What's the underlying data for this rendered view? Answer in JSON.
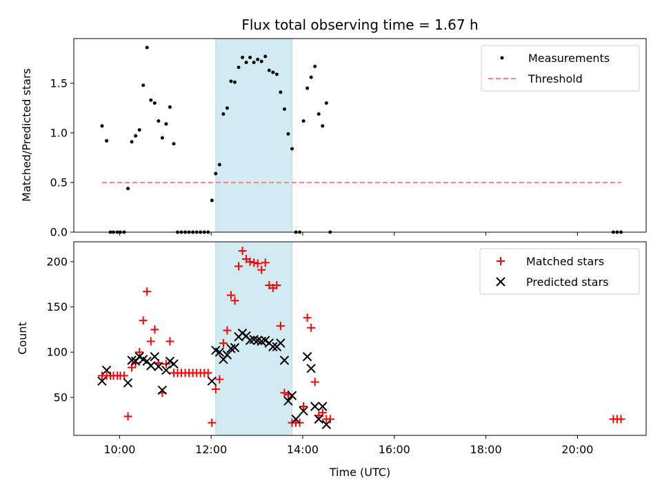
{
  "chart_data": {
    "type": "scatter",
    "title": "Flux total observing time = 1.67 h",
    "xlabel": "Time (UTC)",
    "xlim": [
      "09:00",
      "21:30"
    ],
    "x_ticks": [
      "10:00",
      "12:00",
      "14:00",
      "16:00",
      "18:00",
      "20:00"
    ],
    "highlight_span": {
      "start": "12:06",
      "end": "13:46",
      "color": "#add8e6"
    },
    "panels": [
      {
        "id": "ratio",
        "ylabel": "Matched/Predicted stars",
        "ylim": [
          0,
          1.95
        ],
        "y_ticks": [
          "0.0",
          "0.5",
          "1.0",
          "1.5"
        ],
        "legend_position": "upper right",
        "series": [
          {
            "name": "Measurements",
            "marker": "dot",
            "color": "#000000",
            "points": [
              [
                "09:37",
                1.07
              ],
              [
                "09:43",
                0.92
              ],
              [
                "09:48",
                0.0
              ],
              [
                "09:52",
                0.0
              ],
              [
                "09:57",
                0.0
              ],
              [
                "10:01",
                0.0
              ],
              [
                "10:06",
                0.0
              ],
              [
                "10:11",
                0.44
              ],
              [
                "10:16",
                0.91
              ],
              [
                "10:21",
                0.97
              ],
              [
                "10:26",
                1.03
              ],
              [
                "10:31",
                1.48
              ],
              [
                "10:36",
                1.86
              ],
              [
                "10:41",
                1.33
              ],
              [
                "10:46",
                1.3
              ],
              [
                "10:51",
                1.12
              ],
              [
                "10:56",
                0.95
              ],
              [
                "11:01",
                1.09
              ],
              [
                "11:06",
                1.26
              ],
              [
                "11:11",
                0.89
              ],
              [
                "11:16",
                0.0
              ],
              [
                "11:21",
                0.0
              ],
              [
                "11:26",
                0.0
              ],
              [
                "11:31",
                0.0
              ],
              [
                "11:36",
                0.0
              ],
              [
                "11:41",
                0.0
              ],
              [
                "11:46",
                0.0
              ],
              [
                "11:51",
                0.0
              ],
              [
                "11:56",
                0.0
              ],
              [
                "12:01",
                0.32
              ],
              [
                "12:06",
                0.59
              ],
              [
                "12:11",
                0.68
              ],
              [
                "12:16",
                1.19
              ],
              [
                "12:21",
                1.25
              ],
              [
                "12:26",
                1.52
              ],
              [
                "12:31",
                1.51
              ],
              [
                "12:36",
                1.66
              ],
              [
                "12:41",
                1.76
              ],
              [
                "12:46",
                1.71
              ],
              [
                "12:51",
                1.76
              ],
              [
                "12:56",
                1.71
              ],
              [
                "13:01",
                1.74
              ],
              [
                "13:06",
                1.72
              ],
              [
                "13:11",
                1.77
              ],
              [
                "13:16",
                1.63
              ],
              [
                "13:21",
                1.61
              ],
              [
                "13:26",
                1.59
              ],
              [
                "13:31",
                1.41
              ],
              [
                "13:36",
                1.24
              ],
              [
                "13:41",
                0.99
              ],
              [
                "13:46",
                0.84
              ],
              [
                "13:51",
                0.0
              ],
              [
                "13:56",
                0.0
              ],
              [
                "14:01",
                1.12
              ],
              [
                "14:06",
                1.45
              ],
              [
                "14:11",
                1.56
              ],
              [
                "14:16",
                1.67
              ],
              [
                "14:21",
                1.19
              ],
              [
                "14:26",
                1.07
              ],
              [
                "14:31",
                1.3
              ],
              [
                "14:36",
                0.0
              ],
              [
                "20:47",
                0.0
              ],
              [
                "20:52",
                0.0
              ],
              [
                "20:57",
                0.0
              ]
            ]
          },
          {
            "name": "Threshold",
            "line": "dashed",
            "color": "#ff7f7f",
            "points": [
              [
                "09:37",
                0.5
              ],
              [
                "20:57",
                0.5
              ]
            ]
          }
        ]
      },
      {
        "id": "counts",
        "ylabel": "Count",
        "ylim": [
          8,
          222
        ],
        "y_ticks": [
          "50",
          "100",
          "150",
          "200"
        ],
        "legend_position": "upper right",
        "series": [
          {
            "name": "Matched stars",
            "marker": "plus",
            "color": "#ff0000",
            "points": [
              [
                "09:37",
                74
              ],
              [
                "09:43",
                74
              ],
              [
                "09:48",
                74
              ],
              [
                "09:52",
                74
              ],
              [
                "09:57",
                74
              ],
              [
                "10:01",
                74
              ],
              [
                "10:06",
                74
              ],
              [
                "10:11",
                29
              ],
              [
                "10:16",
                83
              ],
              [
                "10:21",
                88
              ],
              [
                "10:26",
                100
              ],
              [
                "10:31",
                135
              ],
              [
                "10:36",
                167
              ],
              [
                "10:41",
                112
              ],
              [
                "10:46",
                125
              ],
              [
                "10:51",
                88
              ],
              [
                "10:56",
                55
              ],
              [
                "11:01",
                87
              ],
              [
                "11:06",
                112
              ],
              [
                "11:11",
                77
              ],
              [
                "11:16",
                77
              ],
              [
                "11:21",
                77
              ],
              [
                "11:26",
                77
              ],
              [
                "11:31",
                77
              ],
              [
                "11:36",
                77
              ],
              [
                "11:41",
                77
              ],
              [
                "11:46",
                77
              ],
              [
                "11:51",
                77
              ],
              [
                "11:56",
                77
              ],
              [
                "12:01",
                22
              ],
              [
                "12:06",
                59
              ],
              [
                "12:11",
                70
              ],
              [
                "12:16",
                110
              ],
              [
                "12:21",
                124
              ],
              [
                "12:26",
                163
              ],
              [
                "12:31",
                157
              ],
              [
                "12:36",
                195
              ],
              [
                "12:41",
                212
              ],
              [
                "12:46",
                203
              ],
              [
                "12:51",
                200
              ],
              [
                "12:56",
                199
              ],
              [
                "13:01",
                198
              ],
              [
                "13:06",
                191
              ],
              [
                "13:11",
                199
              ],
              [
                "13:16",
                174
              ],
              [
                "13:21",
                171
              ],
              [
                "13:26",
                174
              ],
              [
                "13:31",
                129
              ],
              [
                "13:36",
                55
              ],
              [
                "13:41",
                53
              ],
              [
                "13:46",
                22
              ],
              [
                "13:51",
                22
              ],
              [
                "13:56",
                22
              ],
              [
                "14:01",
                40
              ],
              [
                "14:06",
                138
              ],
              [
                "14:11",
                127
              ],
              [
                "14:16",
                67
              ],
              [
                "14:21",
                30
              ],
              [
                "14:26",
                33
              ],
              [
                "14:31",
                26
              ],
              [
                "14:36",
                26
              ],
              [
                "20:47",
                26
              ],
              [
                "20:52",
                26
              ],
              [
                "20:57",
                26
              ]
            ]
          },
          {
            "name": "Predicted stars",
            "marker": "x",
            "color": "#000000",
            "points": [
              [
                "09:37",
                68
              ],
              [
                "09:43",
                80
              ],
              [
                "10:11",
                66
              ],
              [
                "10:16",
                91
              ],
              [
                "10:21",
                90
              ],
              [
                "10:26",
                95
              ],
              [
                "10:31",
                92
              ],
              [
                "10:36",
                90
              ],
              [
                "10:41",
                85
              ],
              [
                "10:46",
                95
              ],
              [
                "10:51",
                84
              ],
              [
                "10:56",
                58
              ],
              [
                "11:01",
                80
              ],
              [
                "11:06",
                90
              ],
              [
                "11:11",
                87
              ],
              [
                "12:01",
                68
              ],
              [
                "12:06",
                102
              ],
              [
                "12:11",
                100
              ],
              [
                "12:16",
                92
              ],
              [
                "12:21",
                97
              ],
              [
                "12:26",
                104
              ],
              [
                "12:31",
                105
              ],
              [
                "12:36",
                117
              ],
              [
                "12:41",
                121
              ],
              [
                "12:46",
                118
              ],
              [
                "12:51",
                113
              ],
              [
                "12:56",
                114
              ],
              [
                "13:01",
                113
              ],
              [
                "13:06",
                112
              ],
              [
                "13:11",
                113
              ],
              [
                "13:16",
                110
              ],
              [
                "13:21",
                106
              ],
              [
                "13:26",
                106
              ],
              [
                "13:31",
                110
              ],
              [
                "13:36",
                91
              ],
              [
                "13:41",
                46
              ],
              [
                "13:46",
                52
              ],
              [
                "13:51",
                26
              ],
              [
                "14:01",
                35
              ],
              [
                "14:06",
                95
              ],
              [
                "14:11",
                82
              ],
              [
                "14:16",
                40
              ],
              [
                "14:21",
                26
              ],
              [
                "14:26",
                40
              ],
              [
                "14:31",
                20
              ]
            ]
          }
        ]
      }
    ]
  }
}
